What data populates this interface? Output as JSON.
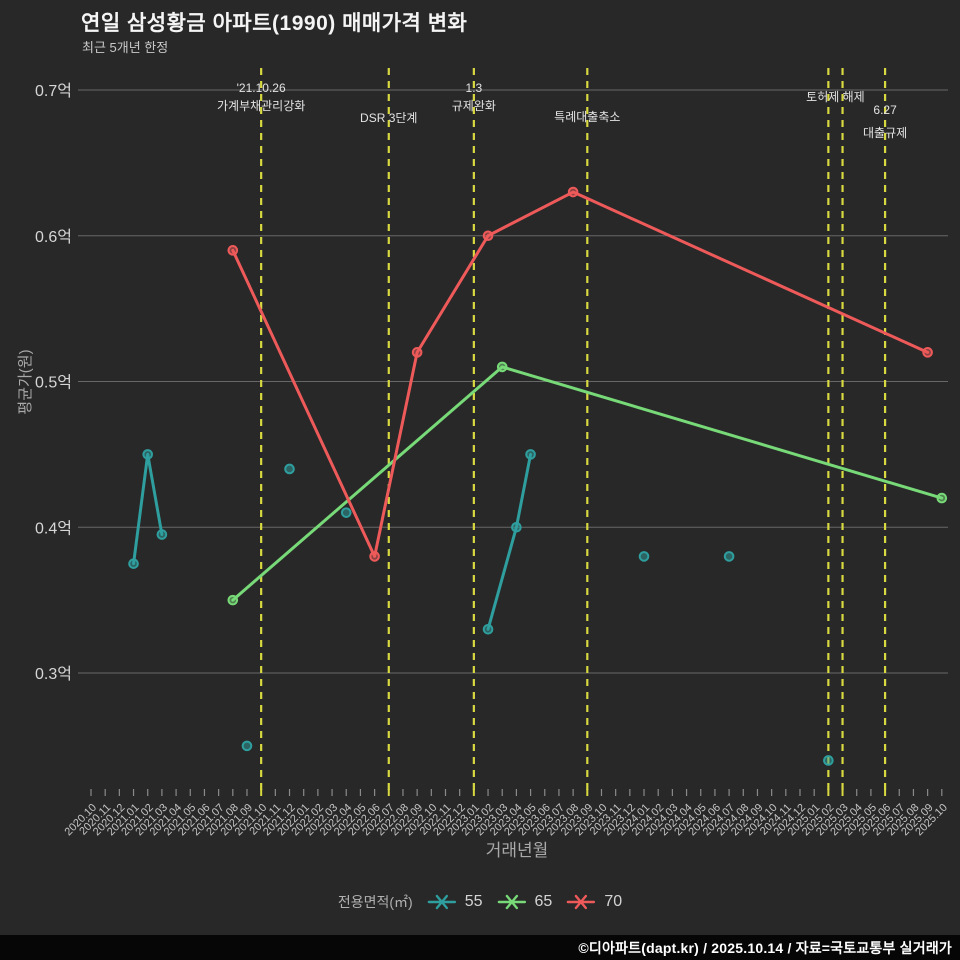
{
  "page": {
    "title": "연일 삼성황금 아파트(1990) 매매가격 변화",
    "subtitle": "최근 5개년 한정",
    "footer": "©디아파트(dapt.kr) / 2025.10.14 / 자료=국토교통부 실거래가"
  },
  "legend": {
    "label": "전용면적(㎡)",
    "items": [
      {
        "name": "55",
        "color": "#2f9e9e"
      },
      {
        "name": "65",
        "color": "#77d977"
      },
      {
        "name": "70",
        "color": "#ee5a5a"
      }
    ]
  },
  "colors": {
    "background": "#282828",
    "grid": "#9b9b9b",
    "event_line": "#d8d840",
    "tick": "#8a8a8a",
    "tick_label": "#c4c4c4",
    "y_tick_label": "#d6d6d6",
    "axis_title": "#a9a9a9",
    "annotation_text": "#e3e3e3"
  },
  "chart_data": {
    "type": "line",
    "title": "연일 삼성황금 아파트(1990) 매매가격 변화",
    "subtitle": "최근 5개년 한정",
    "xlabel": "거래년월",
    "ylabel": "평균가(원)",
    "unit": "억",
    "grid": true,
    "legend_position": "bottom",
    "ylim": [
      0.216,
      0.715
    ],
    "y_ticks": [
      {
        "value": 0.3,
        "label": "0.3억"
      },
      {
        "value": 0.4,
        "label": "0.4억"
      },
      {
        "value": 0.5,
        "label": "0.5억"
      },
      {
        "value": 0.6,
        "label": "0.6억"
      },
      {
        "value": 0.7,
        "label": "0.7억"
      }
    ],
    "x_categories": [
      "2020.10",
      "2020.11",
      "2020.12",
      "2021.01",
      "2021.02",
      "2021.03",
      "2021.04",
      "2021.05",
      "2021.06",
      "2021.07",
      "2021.08",
      "2021.09",
      "2021.10",
      "2021.11",
      "2021.12",
      "2022.01",
      "2022.02",
      "2022.03",
      "2022.04",
      "2022.05",
      "2022.06",
      "2022.07",
      "2022.08",
      "2022.09",
      "2022.10",
      "2022.11",
      "2022.12",
      "2023.01",
      "2023.02",
      "2023.03",
      "2023.04",
      "2023.05",
      "2023.06",
      "2023.07",
      "2023.08",
      "2023.09",
      "2023.10",
      "2023.11",
      "2023.12",
      "2024.01",
      "2024.02",
      "2024.03",
      "2024.04",
      "2024.05",
      "2024.06",
      "2024.07",
      "2024.08",
      "2024.09",
      "2024.10",
      "2024.11",
      "2024.12",
      "2025.01",
      "2025.02",
      "2025.03",
      "2025.04",
      "2025.05",
      "2025.06",
      "2025.07",
      "2025.08",
      "2025.09",
      "2025.10"
    ],
    "series": [
      {
        "name": "55",
        "area_m2": "55",
        "color": "#2f9e9e",
        "segments": [
          [
            [
              "2021.01",
              0.375
            ],
            [
              "2021.02",
              0.45
            ],
            [
              "2021.03",
              0.395
            ]
          ],
          [
            [
              "2021.09",
              0.25
            ]
          ],
          [
            [
              "2021.12",
              0.44
            ]
          ],
          [
            [
              "2022.04",
              0.41
            ]
          ],
          [
            [
              "2023.02",
              0.33
            ],
            [
              "2023.04",
              0.4
            ],
            [
              "2023.05",
              0.45
            ]
          ],
          [
            [
              "2024.01",
              0.38
            ]
          ],
          [
            [
              "2024.07",
              0.38
            ]
          ],
          [
            [
              "2025.02",
              0.24
            ]
          ]
        ]
      },
      {
        "name": "65",
        "area_m2": "65",
        "color": "#77d977",
        "segments": [
          [
            [
              "2021.08",
              0.35
            ],
            [
              "2023.03",
              0.51
            ],
            [
              "2025.10",
              0.42
            ]
          ]
        ]
      },
      {
        "name": "70",
        "area_m2": "70",
        "color": "#ee5a5a",
        "segments": [
          [
            [
              "2021.08",
              0.59
            ],
            [
              "2022.06",
              0.38
            ],
            [
              "2022.09",
              0.52
            ],
            [
              "2023.02",
              0.6
            ],
            [
              "2023.08",
              0.63
            ],
            [
              "2025.09",
              0.52
            ]
          ]
        ]
      }
    ],
    "event_lines": [
      {
        "months": [
          "2021.10"
        ],
        "label_lines": [
          "'21.10.26",
          "가계부채관리강화"
        ],
        "label_ys": [
          92,
          110
        ]
      },
      {
        "months": [
          "2022.07"
        ],
        "label_lines": [
          "DSR 3단계"
        ],
        "label_ys": [
          122
        ]
      },
      {
        "months": [
          "2023.01"
        ],
        "label_lines": [
          "1.3",
          "규제완화"
        ],
        "label_ys": [
          92,
          110
        ]
      },
      {
        "months": [
          "2023.09"
        ],
        "label_lines": [
          "특례대출축소"
        ],
        "label_ys": [
          121
        ]
      },
      {
        "months": [
          "2025.02",
          "2025.03"
        ],
        "label_lines": [
          "토허제 해제"
        ],
        "label_ys": [
          101
        ]
      },
      {
        "months": [
          "2025.06"
        ],
        "label_lines": [
          "6.27",
          "대출규제"
        ],
        "label_ys": [
          114,
          137
        ]
      }
    ]
  }
}
